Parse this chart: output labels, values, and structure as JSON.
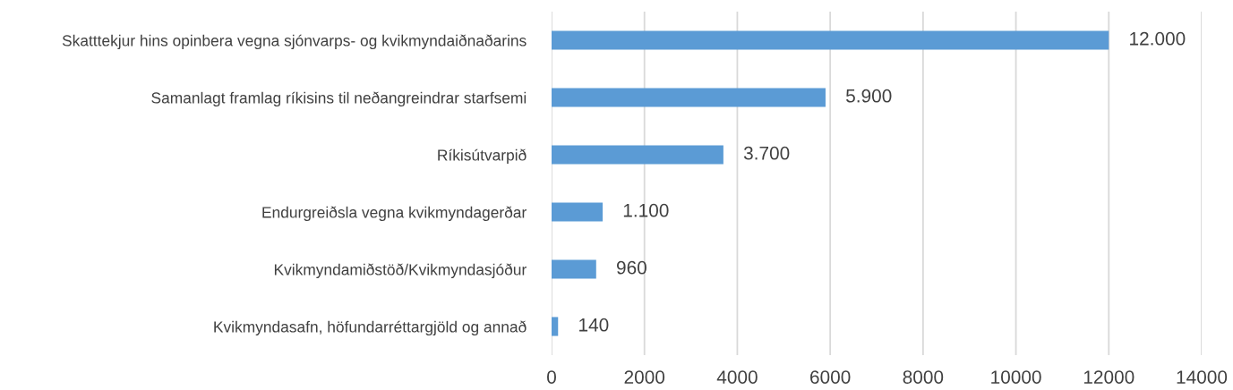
{
  "chart_data": {
    "type": "bar",
    "orientation": "horizontal",
    "categories": [
      "Skatttekjur hins opinbera vegna sjónvarps- og kvikmyndaiðnaðarins",
      "Samanlagt framlag ríkisins til neðangreindrar starfsemi",
      "Ríkisútvarpið",
      "Endurgreiðsla vegna kvikmyndagerðar",
      "Kvikmyndamiðstöð/Kvikmyndasjóður",
      "Kvikmyndasafn, höfundarréttargjöld og annað"
    ],
    "values": [
      12000,
      5900,
      3700,
      1100,
      960,
      140
    ],
    "value_labels": [
      "12.000",
      "5.900",
      "3.700",
      "1.100",
      "960",
      "140"
    ],
    "color": "#5b9bd5",
    "xlim": [
      0,
      14000
    ],
    "xticks": [
      0,
      2000,
      4000,
      6000,
      8000,
      10000,
      12000,
      14000
    ],
    "grid": "x"
  }
}
